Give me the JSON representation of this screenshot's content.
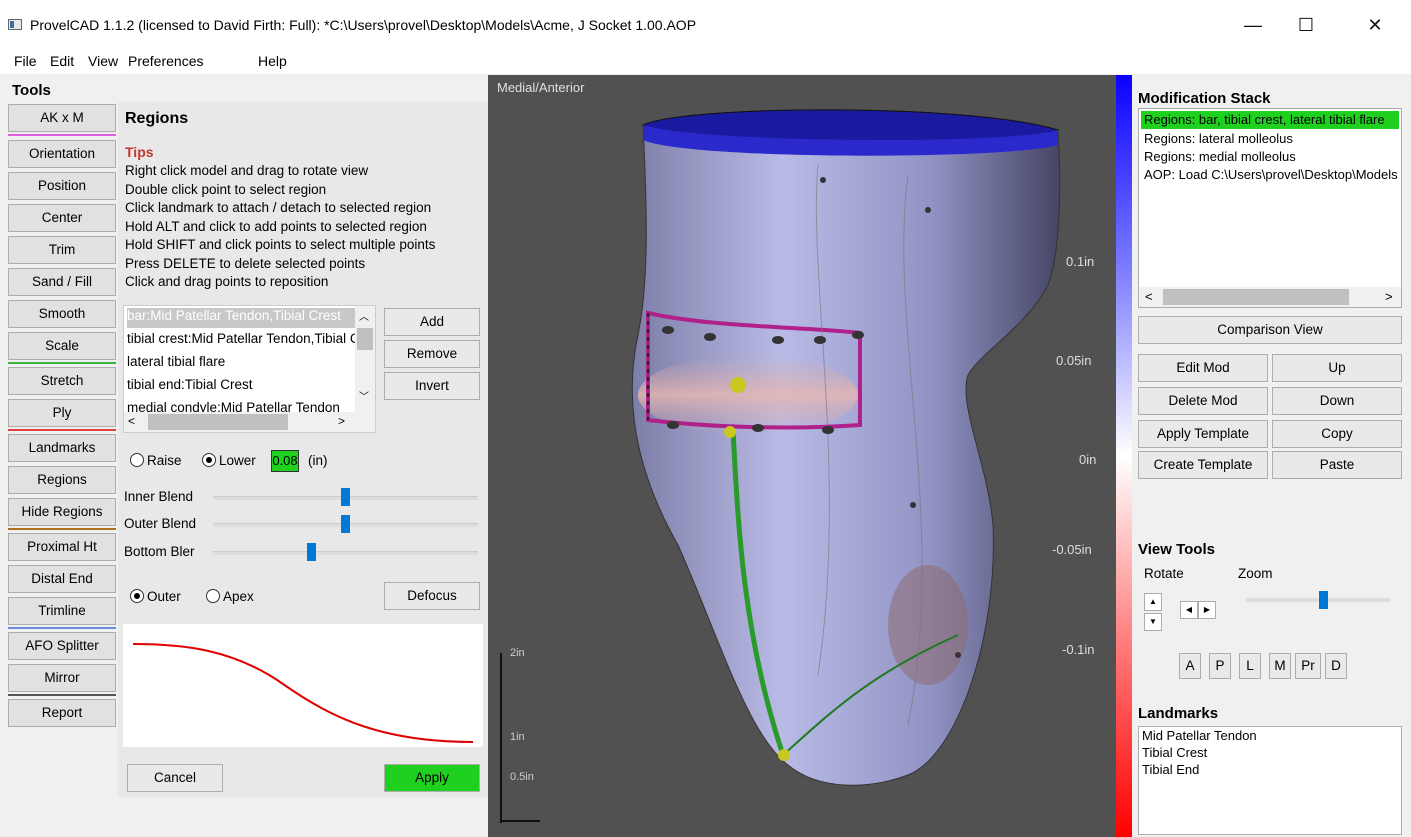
{
  "window": {
    "title": "ProvelCAD 1.1.2 (licensed to David Firth: Full): *C:\\Users\\provel\\Desktop\\Models\\Acme, J Socket 1.00.AOP",
    "min": "—",
    "max": "☐",
    "close": "✕"
  },
  "menu": [
    "File",
    "Edit",
    "View",
    "Preferences",
    "Help"
  ],
  "tools": {
    "header": "Tools",
    "buttons": [
      "AK x M",
      "Orientation",
      "Position",
      "Center",
      "Trim",
      "Sand / Fill",
      "Smooth",
      "Scale",
      "Stretch",
      "Ply",
      "Landmarks",
      "Regions",
      "Hide Regions",
      "Proximal Ht",
      "Distal End",
      "Trimline",
      "AFO Splitter",
      "Mirror",
      "Report"
    ]
  },
  "regions": {
    "header": "Regions",
    "tips_title": "Tips",
    "tips": [
      "Right click model and drag to rotate view",
      "Double click point to select region",
      "Click landmark to attach / detach to selected region",
      "Hold ALT and click to add points to selected region",
      "Hold SHIFT and click points to select multiple points",
      "Press DELETE to delete selected points",
      "Click and drag points to reposition"
    ],
    "list": [
      "bar:Mid Patellar Tendon,Tibial Crest",
      "tibial crest:Mid Patellar Tendon,Tibial Crest",
      "lateral tibial flare",
      "tibial end:Tibial Crest",
      "medial condyle:Mid Patellar Tendon"
    ],
    "add": "Add",
    "remove": "Remove",
    "invert": "Invert",
    "raise": "Raise",
    "lower": "Lower",
    "amount": "0.08",
    "unit": "(in)",
    "sliders": [
      {
        "label": "Inner Blend",
        "value": 0.5
      },
      {
        "label": "Outer Blend",
        "value": 0.5
      },
      {
        "label": "Bottom Bler",
        "value": 0.37
      }
    ],
    "outer": "Outer",
    "apex": "Apex",
    "defocus": "Defocus",
    "cancel": "Cancel",
    "apply": "Apply"
  },
  "viewport": {
    "label": "Medial/Anterior",
    "scale_labels": [
      "2in",
      "1in",
      "0.5in"
    ]
  },
  "colorbar": {
    "labels": [
      "0.1in",
      "0.05in",
      "0in",
      "-0.05in",
      "-0.1in"
    ]
  },
  "mod_stack": {
    "header": "Modification Stack",
    "items": [
      "Regions: bar, tibial crest, lateral tibial flare",
      "Regions: lateral molleolus",
      "Regions: medial molleolus",
      "AOP: Load C:\\Users\\provel\\Desktop\\Models"
    ]
  },
  "buttons": {
    "comparison": "Comparison View",
    "edit_mod": "Edit Mod",
    "up": "Up",
    "delete_mod": "Delete Mod",
    "down": "Down",
    "apply_template": "Apply Template",
    "copy": "Copy",
    "create_template": "Create Template",
    "paste": "Paste"
  },
  "view_tools": {
    "header": "View Tools",
    "rotate": "Rotate",
    "zoom": "Zoom",
    "views": [
      "A",
      "P",
      "L",
      "M",
      "Pr",
      "D"
    ]
  },
  "landmarks": {
    "header": "Landmarks",
    "items": [
      "Mid Patellar Tendon",
      "Tibial Crest",
      "Tibial End"
    ]
  },
  "colors": {
    "accent_green": "#1fd01f",
    "highlight_red": "#c0392b",
    "selection_blue": "#0078d7"
  }
}
